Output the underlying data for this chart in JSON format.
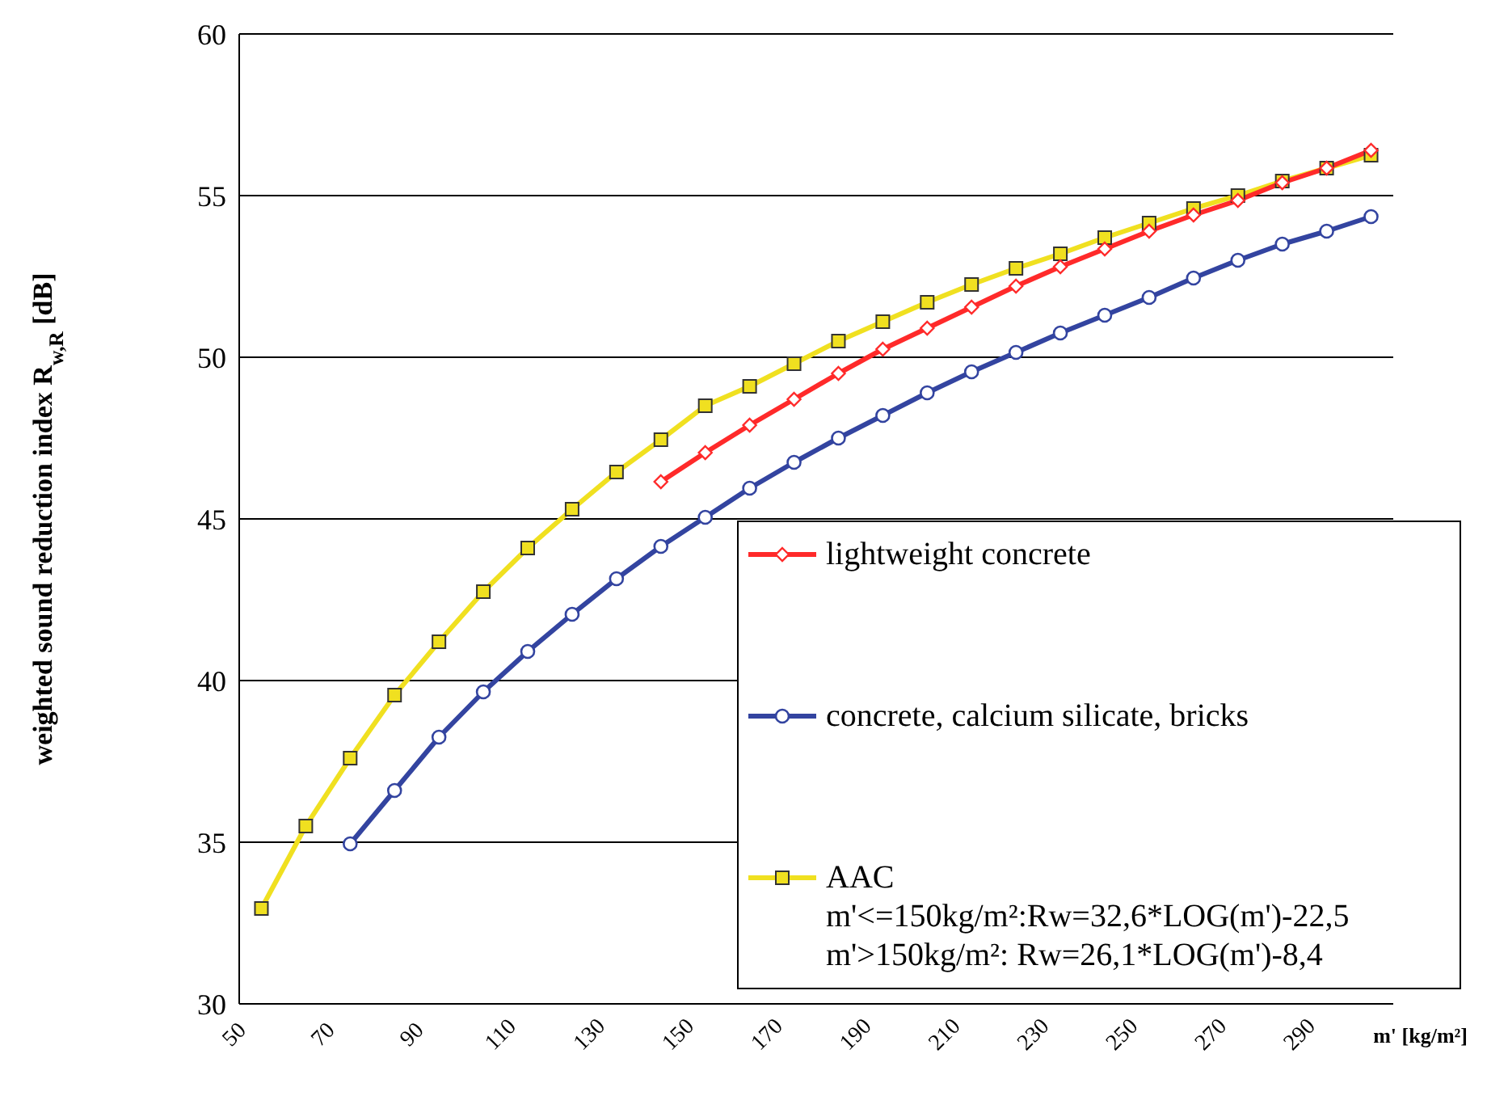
{
  "chart_data": {
    "type": "line",
    "ylabel": "weighted sound reduction index R$_{w,R}$ [dB]",
    "xlabel": "m' [kg/m²]",
    "xlim": [
      50,
      310
    ],
    "xticks": [
      50,
      70,
      90,
      110,
      130,
      150,
      170,
      190,
      210,
      230,
      250,
      270,
      290
    ],
    "ylim": [
      30,
      60
    ],
    "yticks": [
      30,
      35,
      40,
      45,
      50,
      55,
      60
    ],
    "grid": "y",
    "legend": "bottom right",
    "series": [
      {
        "name": "lightweight concrete",
        "color": "#ff2a2a",
        "marker": "diamond",
        "x": [
          145,
          155,
          165,
          175,
          185,
          195,
          205,
          215,
          225,
          235,
          245,
          255,
          265,
          275,
          285,
          295,
          305
        ],
        "values": [
          46.15,
          47.05,
          47.9,
          48.7,
          49.5,
          50.25,
          50.9,
          51.55,
          52.2,
          52.8,
          53.35,
          53.9,
          54.4,
          54.85,
          55.4,
          55.85,
          56.4
        ]
      },
      {
        "name": "concrete, calcium silicate, bricks",
        "color": "#3344a0",
        "marker": "circle",
        "x": [
          75,
          85,
          95,
          105,
          115,
          125,
          135,
          145,
          155,
          165,
          175,
          185,
          195,
          205,
          215,
          225,
          235,
          245,
          255,
          265,
          275,
          285,
          295,
          305
        ],
        "values": [
          34.95,
          36.6,
          38.25,
          39.65,
          40.9,
          42.05,
          43.15,
          44.15,
          45.05,
          45.95,
          46.75,
          47.5,
          48.2,
          48.9,
          49.55,
          50.15,
          50.75,
          51.3,
          51.85,
          52.45,
          53.0,
          53.5,
          53.9,
          54.35
        ]
      },
      {
        "name": "AAC",
        "color": "#f0e020",
        "marker": "square",
        "x": [
          55,
          65,
          75,
          85,
          95,
          105,
          115,
          125,
          135,
          145,
          155,
          165,
          175,
          185,
          195,
          205,
          215,
          225,
          235,
          245,
          255,
          265,
          275,
          285,
          295,
          305
        ],
        "values": [
          32.95,
          35.5,
          37.6,
          39.55,
          41.2,
          42.75,
          44.1,
          45.3,
          46.45,
          47.45,
          48.5,
          49.1,
          49.8,
          50.5,
          51.1,
          51.7,
          52.25,
          52.75,
          53.2,
          53.7,
          54.15,
          54.6,
          55.0,
          55.45,
          55.85,
          56.25
        ]
      }
    ],
    "annotations": [
      "m'<=150kg/m²:Rw=32,6*LOG(m')-22,5",
      "m'>150kg/m²: Rw=26,1*LOG(m')-8,4"
    ]
  }
}
